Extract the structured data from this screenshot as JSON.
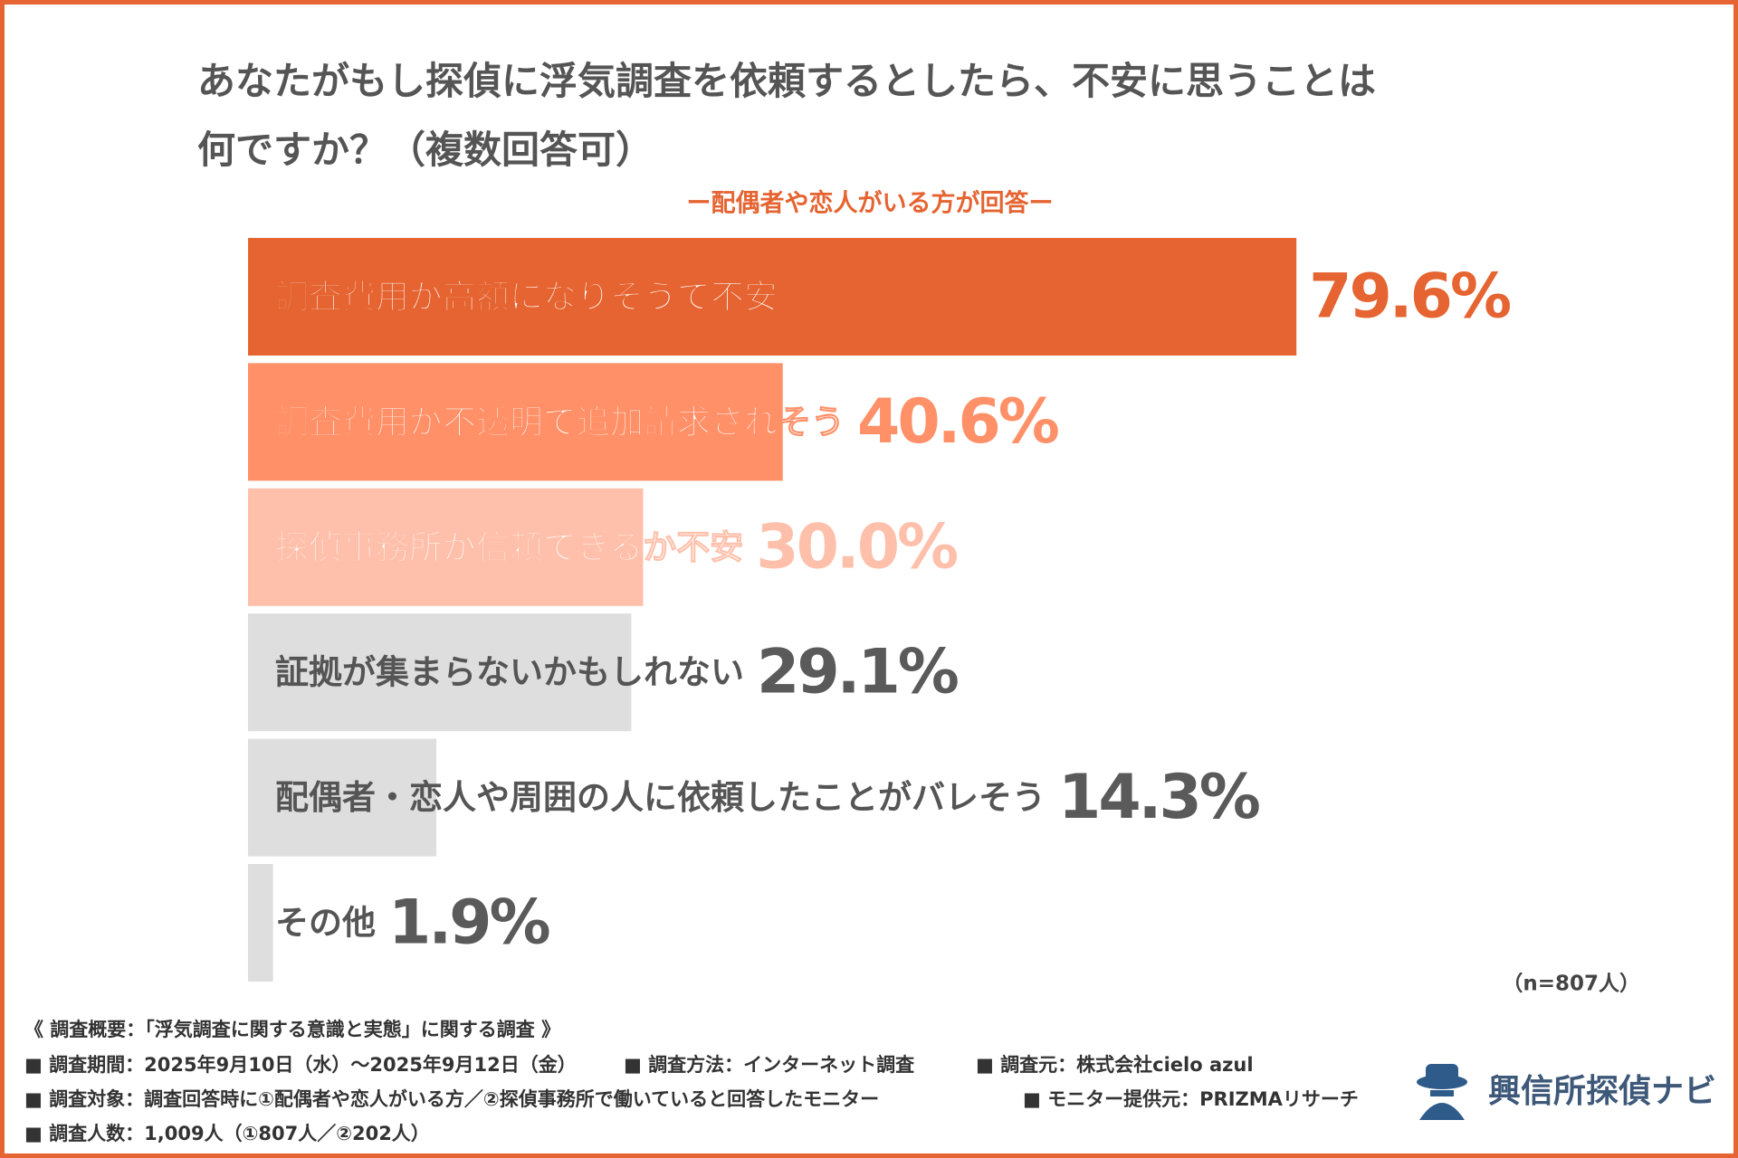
{
  "chart_data": {
    "type": "bar",
    "orientation": "horizontal",
    "title": "あなたがもし探偵に浮気調査を依頼するとしたら、不安に思うことは何ですか？（複数回答可）",
    "subtitle": "ー配偶者や恋人がいる方が回答ー",
    "categories": [
      "調査費用が高額になりそうで不安",
      "調査費用が不透明で追加請求されそう",
      "探偵事務所が信頼できるか不安",
      "証拠が集まらないかもしれない",
      "配偶者・恋人や周囲の人に依頼したことがバレそう",
      "その他"
    ],
    "values": [
      79.6,
      40.6,
      30.0,
      29.1,
      14.3,
      1.9
    ],
    "value_labels": [
      "79.6%",
      "40.6%",
      "30.0%",
      "29.1%",
      "14.3%",
      "1.9%"
    ],
    "colors": [
      "#e56431",
      "#ff9068",
      "#ffc0ab",
      "#dedede",
      "#dedede",
      "#dedede"
    ],
    "text_colors": [
      "#e56431",
      "#ff9068",
      "#ffc0ab",
      "#5a5a5a",
      "#5a5a5a",
      "#5a5a5a"
    ],
    "xlim": [
      0,
      100
    ],
    "note": "（n=807人）"
  },
  "footer": {
    "heading": "《 調査概要：「浮気調査に関する意識と実態」に関する調査 》",
    "rows": [
      [
        "■ 調査期間：2025年9月10日（水）～2025年9月12日（金）",
        "■ 調査方法：インターネット調査",
        "■ 調査元：株式会社cielo azul"
      ],
      [
        "■ 調査対象：調査回答時に①配偶者や恋人がいる方／②探偵事務所で働いていると回答したモニター",
        "■ モニター提供元：PRIZMAリサーチ"
      ],
      [
        "■ 調査人数：1,009人（①807人／②202人）"
      ]
    ]
  },
  "logo": "興信所探偵ナビ"
}
